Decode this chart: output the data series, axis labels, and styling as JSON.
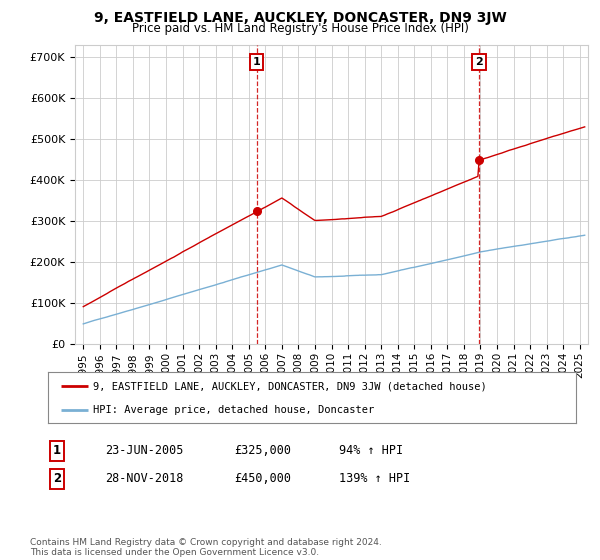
{
  "title": "9, EASTFIELD LANE, AUCKLEY, DONCASTER, DN9 3JW",
  "subtitle": "Price paid vs. HM Land Registry's House Price Index (HPI)",
  "title_fontsize": 10,
  "subtitle_fontsize": 8.5,
  "ylabel_ticks": [
    "£0",
    "£100K",
    "£200K",
    "£300K",
    "£400K",
    "£500K",
    "£600K",
    "£700K"
  ],
  "ytick_values": [
    0,
    100000,
    200000,
    300000,
    400000,
    500000,
    600000,
    700000
  ],
  "ylim": [
    0,
    730000
  ],
  "xlim_start": 1994.5,
  "xlim_end": 2025.5,
  "sale1_year": 2005.48,
  "sale1_price": 325000,
  "sale1_label": "1",
  "sale1_date": "23-JUN-2005",
  "sale1_price_str": "£325,000",
  "sale1_pct": "94% ↑ HPI",
  "sale2_year": 2018.92,
  "sale2_price": 450000,
  "sale2_label": "2",
  "sale2_date": "28-NOV-2018",
  "sale2_price_str": "£450,000",
  "sale2_pct": "139% ↑ HPI",
  "red_color": "#cc0000",
  "blue_color": "#7ab0d4",
  "background_color": "#ffffff",
  "grid_color": "#cccccc",
  "footer_text": "Contains HM Land Registry data © Crown copyright and database right 2024.\nThis data is licensed under the Open Government Licence v3.0.",
  "legend_label_red": "9, EASTFIELD LANE, AUCKLEY, DONCASTER, DN9 3JW (detached house)",
  "legend_label_blue": "HPI: Average price, detached house, Doncaster",
  "xtick_years": [
    1995,
    1996,
    1997,
    1998,
    1999,
    2000,
    2001,
    2002,
    2003,
    2004,
    2005,
    2006,
    2007,
    2008,
    2009,
    2010,
    2011,
    2012,
    2013,
    2014,
    2015,
    2016,
    2017,
    2018,
    2019,
    2020,
    2021,
    2022,
    2023,
    2024,
    2025
  ]
}
